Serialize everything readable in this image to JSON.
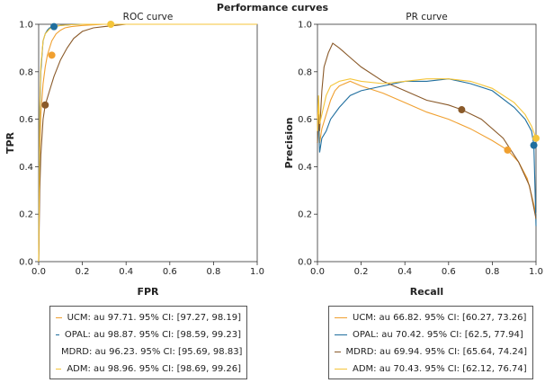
{
  "suptitle": "Performance curves",
  "chart_data": [
    {
      "type": "line",
      "title": "ROC curve",
      "xlabel": "FPR",
      "ylabel": "TPR",
      "xlim": [
        0,
        1.0
      ],
      "ylim": [
        0,
        1.0
      ],
      "xticks": [
        "0.0",
        "0.2",
        "0.4",
        "0.6",
        "0.8",
        "1.0"
      ],
      "yticks": [
        "0.0",
        "0.2",
        "0.4",
        "0.6",
        "0.8",
        "1.0"
      ],
      "grid": false,
      "legend_position": "below",
      "series": [
        {
          "name": "UCM: au 97.71. 95% CI: [97.27, 98.19]",
          "color": "#f0a030",
          "x": [
            0,
            0.005,
            0.01,
            0.02,
            0.03,
            0.04,
            0.05,
            0.06,
            0.08,
            0.1,
            0.12,
            0.15,
            0.2,
            0.3,
            0.5,
            1.0
          ],
          "y": [
            0,
            0.45,
            0.62,
            0.75,
            0.82,
            0.87,
            0.9,
            0.93,
            0.96,
            0.975,
            0.985,
            0.99,
            0.995,
            1.0,
            1.0,
            1.0
          ],
          "marker": [
            0.06,
            0.87
          ]
        },
        {
          "name": "OPAL: au 98.87. 95% CI: [98.59, 99.23]",
          "color": "#1f6e9e",
          "x": [
            0,
            0.005,
            0.01,
            0.02,
            0.03,
            0.04,
            0.05,
            0.07,
            0.1,
            0.15,
            0.2,
            0.3,
            0.5,
            1.0
          ],
          "y": [
            0,
            0.6,
            0.8,
            0.93,
            0.96,
            0.975,
            0.985,
            0.99,
            0.995,
            0.998,
            1.0,
            1.0,
            1.0,
            1.0
          ],
          "marker": [
            0.07,
            0.99
          ]
        },
        {
          "name": "MDRD: au 96.23. 95% CI: [95.69, 98.83]",
          "color": "#8a5a2a",
          "x": [
            0,
            0.005,
            0.01,
            0.02,
            0.03,
            0.05,
            0.07,
            0.1,
            0.13,
            0.16,
            0.2,
            0.25,
            0.3,
            0.4,
            0.6,
            1.0
          ],
          "y": [
            0,
            0.3,
            0.45,
            0.6,
            0.66,
            0.72,
            0.78,
            0.85,
            0.9,
            0.94,
            0.97,
            0.985,
            0.99,
            1.0,
            1.0,
            1.0
          ],
          "marker": [
            0.03,
            0.66
          ]
        },
        {
          "name": "ADM: au 98.96. 95% CI: [98.69, 99.26]",
          "color": "#f5c53a",
          "x": [
            0,
            0.005,
            0.01,
            0.02,
            0.03,
            0.05,
            0.07,
            0.1,
            0.15,
            0.2,
            0.33,
            0.5,
            1.0
          ],
          "y": [
            0,
            0.65,
            0.82,
            0.93,
            0.96,
            0.98,
            0.99,
            0.995,
            0.998,
            1.0,
            1.0,
            1.0,
            1.0
          ],
          "marker": [
            0.33,
            1.0
          ]
        }
      ]
    },
    {
      "type": "line",
      "title": "PR curve",
      "xlabel": "Recall",
      "ylabel": "Precision",
      "xlim": [
        0,
        1.0
      ],
      "ylim": [
        0,
        1.0
      ],
      "xticks": [
        "0.0",
        "0.2",
        "0.4",
        "0.6",
        "0.8",
        "1.0"
      ],
      "yticks": [
        "0.0",
        "0.2",
        "0.4",
        "0.6",
        "0.8",
        "1.0"
      ],
      "grid": false,
      "legend_position": "below",
      "series": [
        {
          "name": "UCM: au 66.82. 95% CI: [60.27, 73.26]",
          "color": "#f0a030",
          "x": [
            0,
            0.005,
            0.01,
            0.02,
            0.04,
            0.06,
            0.08,
            0.1,
            0.15,
            0.2,
            0.3,
            0.4,
            0.5,
            0.6,
            0.7,
            0.8,
            0.87,
            0.92,
            0.96,
            0.98,
            1.0
          ],
          "y": [
            0.6,
            0.68,
            0.5,
            0.56,
            0.62,
            0.68,
            0.72,
            0.74,
            0.76,
            0.74,
            0.71,
            0.67,
            0.63,
            0.6,
            0.56,
            0.51,
            0.47,
            0.42,
            0.35,
            0.28,
            0.2
          ],
          "marker": [
            0.87,
            0.47
          ]
        },
        {
          "name": "OPAL: au 70.42. 95% CI: [62.5, 77.94]",
          "color": "#1f6e9e",
          "x": [
            0,
            0.005,
            0.01,
            0.02,
            0.04,
            0.06,
            0.1,
            0.15,
            0.2,
            0.3,
            0.4,
            0.5,
            0.6,
            0.7,
            0.8,
            0.9,
            0.95,
            0.98,
            0.99,
            1.0
          ],
          "y": [
            0.5,
            0.62,
            0.46,
            0.52,
            0.55,
            0.6,
            0.65,
            0.7,
            0.72,
            0.74,
            0.76,
            0.76,
            0.77,
            0.75,
            0.72,
            0.65,
            0.6,
            0.55,
            0.49,
            0.15
          ],
          "marker": [
            0.99,
            0.49
          ]
        },
        {
          "name": "MDRD: au 69.94. 95% CI: [65.64, 74.24]",
          "color": "#8a5a2a",
          "x": [
            0,
            0.005,
            0.01,
            0.02,
            0.03,
            0.05,
            0.07,
            0.1,
            0.15,
            0.2,
            0.3,
            0.4,
            0.5,
            0.6,
            0.66,
            0.75,
            0.85,
            0.92,
            0.97,
            1.0
          ],
          "y": [
            0.5,
            0.62,
            0.55,
            0.72,
            0.82,
            0.88,
            0.92,
            0.9,
            0.86,
            0.82,
            0.76,
            0.72,
            0.68,
            0.66,
            0.64,
            0.6,
            0.52,
            0.42,
            0.32,
            0.18
          ],
          "marker": [
            0.66,
            0.64
          ]
        },
        {
          "name": "ADM: au 70.43. 95% CI: [62.12, 76.74]",
          "color": "#f5c53a",
          "x": [
            0,
            0.005,
            0.01,
            0.02,
            0.04,
            0.06,
            0.1,
            0.15,
            0.2,
            0.3,
            0.4,
            0.5,
            0.6,
            0.7,
            0.8,
            0.9,
            0.95,
            0.98,
            1.0
          ],
          "y": [
            0.55,
            0.7,
            0.58,
            0.62,
            0.7,
            0.74,
            0.76,
            0.77,
            0.76,
            0.75,
            0.76,
            0.77,
            0.77,
            0.76,
            0.73,
            0.67,
            0.62,
            0.57,
            0.52
          ],
          "marker": [
            1.0,
            0.52
          ]
        }
      ]
    }
  ]
}
